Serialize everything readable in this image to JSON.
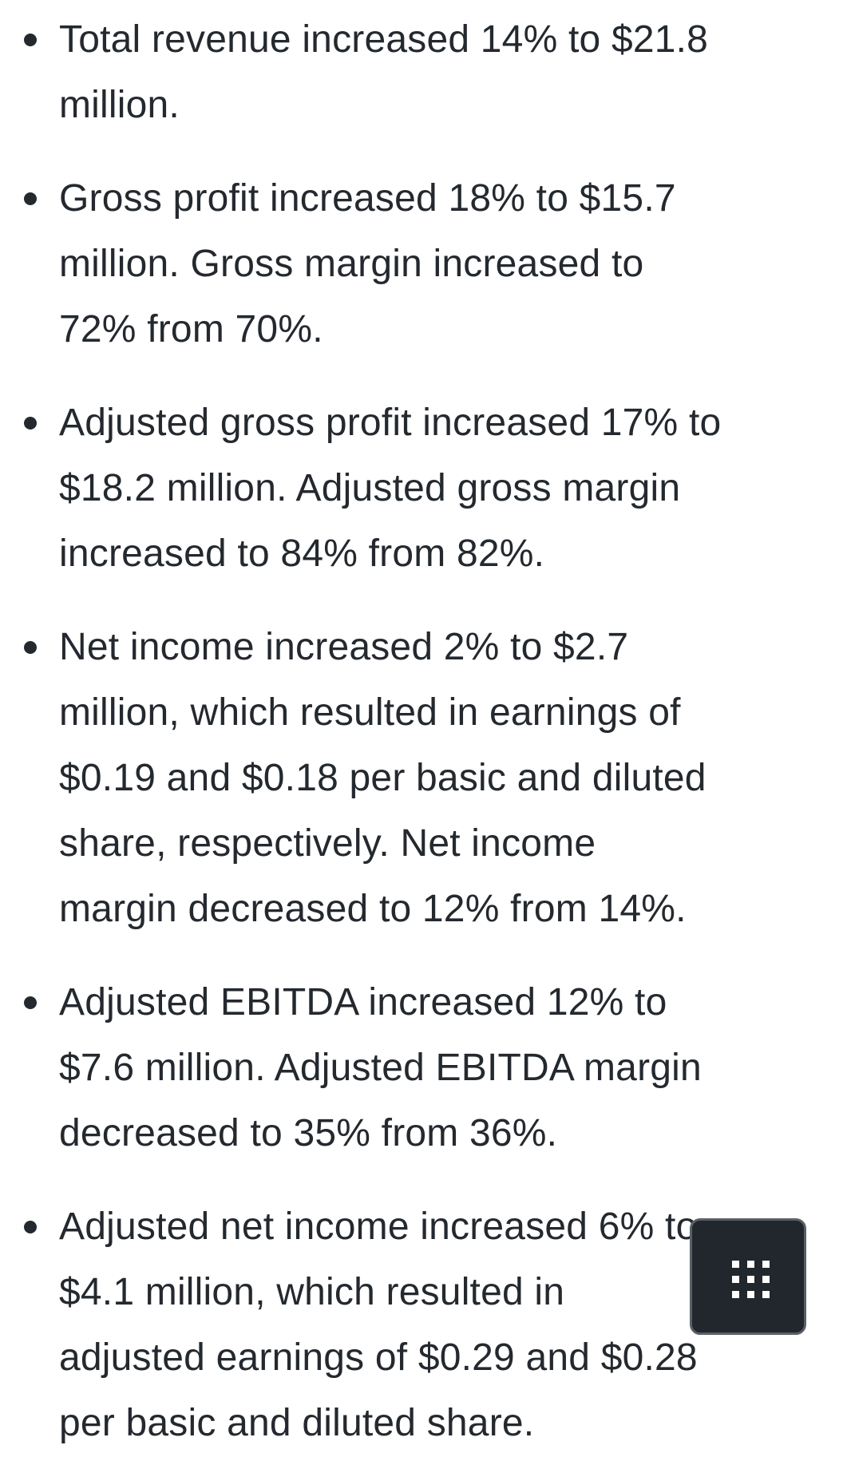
{
  "items": [
    {
      "lines": [
        "Total revenue increased 14% to $21.8",
        "million."
      ]
    },
    {
      "lines": [
        "Gross profit increased 18% to $15.7",
        "million. Gross margin increased to",
        "72% from 70%."
      ]
    },
    {
      "lines": [
        "Adjusted gross profit increased 17% to",
        "$18.2 million. Adjusted gross margin",
        "increased to 84% from 82%."
      ]
    },
    {
      "lines": [
        "Net income increased 2% to $2.7",
        "million, which resulted in earnings of",
        "$0.19 and $0.18 per basic and diluted",
        "share, respectively. Net income",
        "margin decreased to 12% from 14%."
      ]
    },
    {
      "lines": [
        "Adjusted EBITDA increased 12% to",
        "$7.6 million. Adjusted EBITDA margin",
        "decreased to 35% from 36%."
      ]
    },
    {
      "lines": [
        "Adjusted net income increased 6% to",
        "$4.1 million, which resulted in",
        "adjusted earnings of $0.29 and $0.28",
        "per basic and diluted share."
      ]
    }
  ],
  "floating_button": {
    "icon": "grid-menu-icon",
    "background": "#22272e"
  }
}
